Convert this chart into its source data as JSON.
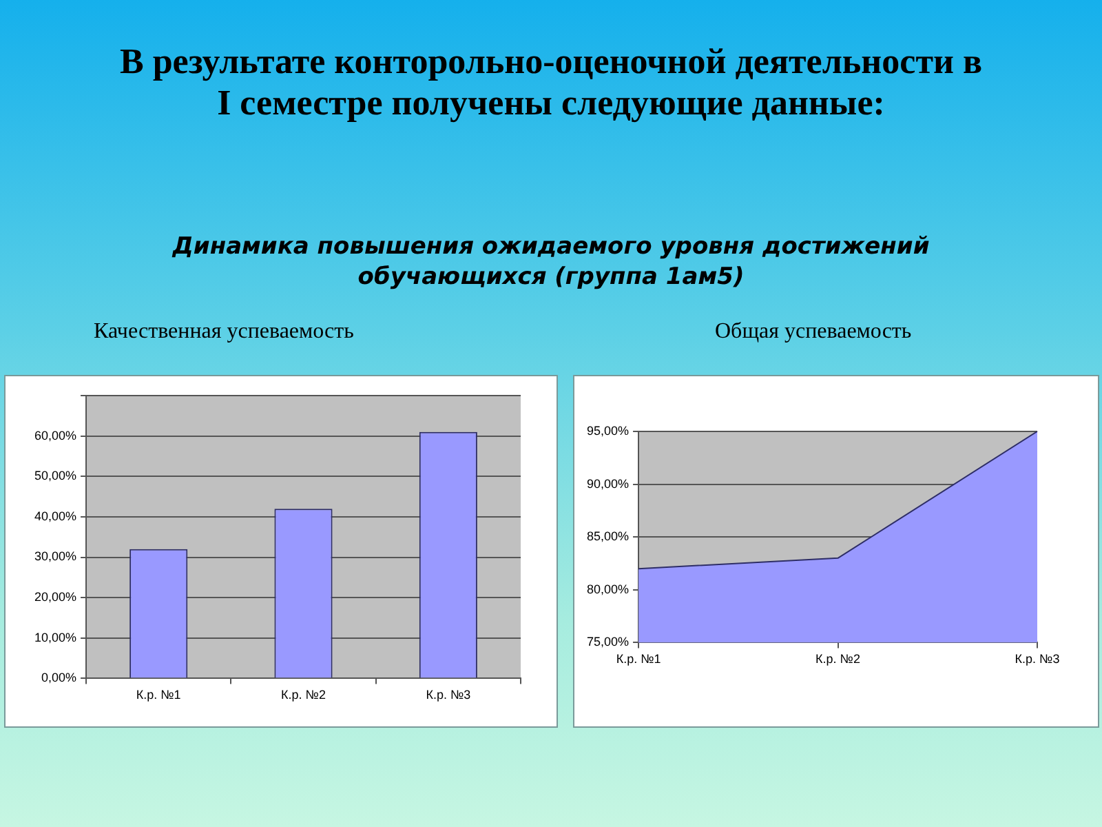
{
  "chart_data": [
    {
      "type": "bar",
      "title": "Качественная успеваемость",
      "annotations": [
        "В результате конторольно-оценочной деятельности в I семестре получены следующие данные:",
        "Динамика повышения ожидаемого уровня достижений обучающихся (группа 1ам5)"
      ],
      "categories": [
        "К.р. №1",
        "К.р. №2",
        "К.р. №3"
      ],
      "values": [
        32,
        42,
        61
      ],
      "color": "#9999ff",
      "ylim": [
        0,
        70
      ],
      "yticks": [
        {
          "value": 0,
          "label": "0,00%"
        },
        {
          "value": 10,
          "label": "10,00%"
        },
        {
          "value": 20,
          "label": "20,00%"
        },
        {
          "value": 30,
          "label": "30,00%"
        },
        {
          "value": 40,
          "label": "40,00%"
        },
        {
          "value": 50,
          "label": "50,00%"
        },
        {
          "value": 60,
          "label": "60,00%"
        },
        {
          "value": 70,
          "label": null
        }
      ],
      "grid": "y"
    },
    {
      "type": "area",
      "title": "Общая успеваемость",
      "categories": [
        "К.р. №1",
        "К.р. №2",
        "К.р. №3"
      ],
      "values": [
        82,
        83,
        95
      ],
      "color": "#9999ff",
      "ylim": [
        75,
        95
      ],
      "yticks": [
        {
          "value": 75,
          "label": "75,00%"
        },
        {
          "value": 80,
          "label": "80,00%"
        },
        {
          "value": 85,
          "label": "85,00%"
        },
        {
          "value": 90,
          "label": "90,00%"
        },
        {
          "value": 95,
          "label": "95,00%"
        }
      ],
      "grid": "y"
    }
  ]
}
